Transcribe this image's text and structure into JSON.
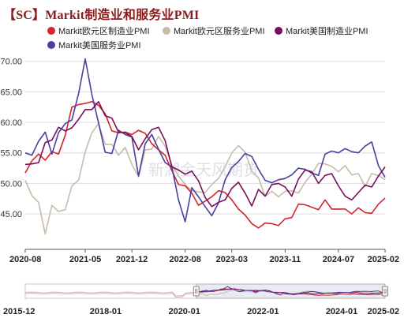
{
  "header": {
    "title": "【SC】Markit制造业和服务业PMI"
  },
  "watermark": "新湖金天风期货",
  "colors": {
    "eu_mfg": "#d4242c",
    "eu_svc": "#c8bca8",
    "us_mfg": "#7a0e5a",
    "us_svc": "#4a3fa0",
    "grid": "#dcdcdc",
    "nav_fill": "#f0e9ea"
  },
  "chart_data": {
    "type": "line",
    "title": "【SC】Markit制造业和服务业PMI",
    "ylim": [
      41,
      71
    ],
    "yticks": [
      "70.00",
      "65.00",
      "60.00",
      "55.00",
      "50.00",
      "45.00"
    ],
    "ytick_values": [
      70,
      65,
      60,
      55,
      50,
      45
    ],
    "xlim": [
      "2020-08",
      "2025-02"
    ],
    "xticks": [
      "2020-08",
      "2021-05",
      "2021-12",
      "2022-08",
      "2023-03",
      "2023-11",
      "2024-07",
      "2025-02"
    ],
    "grid": "horizontal",
    "legend_position": "top",
    "x": [
      "2020-08",
      "2020-09",
      "2020-10",
      "2020-11",
      "2020-12",
      "2021-01",
      "2021-02",
      "2021-03",
      "2021-04",
      "2021-05",
      "2021-06",
      "2021-07",
      "2021-08",
      "2021-09",
      "2021-10",
      "2021-11",
      "2021-12",
      "2022-01",
      "2022-02",
      "2022-03",
      "2022-04",
      "2022-05",
      "2022-06",
      "2022-07",
      "2022-08",
      "2022-09",
      "2022-10",
      "2022-11",
      "2022-12",
      "2023-01",
      "2023-02",
      "2023-03",
      "2023-04",
      "2023-05",
      "2023-06",
      "2023-07",
      "2023-08",
      "2023-09",
      "2023-10",
      "2023-11",
      "2023-12",
      "2024-01",
      "2024-02",
      "2024-03",
      "2024-04",
      "2024-05",
      "2024-06",
      "2024-07",
      "2024-08",
      "2024-09",
      "2024-10",
      "2024-11",
      "2024-12",
      "2025-01",
      "2025-02"
    ],
    "series": [
      {
        "name": "Markit欧元区制造业PMI",
        "color": "#d4242c",
        "values": [
          51.7,
          53.7,
          54.8,
          53.8,
          55.2,
          54.8,
          57.9,
          62.5,
          62.9,
          63.1,
          63.4,
          62.8,
          61.4,
          58.6,
          58.3,
          58.4,
          58.0,
          58.7,
          58.2,
          56.5,
          55.5,
          54.6,
          52.1,
          49.8,
          49.6,
          48.4,
          46.4,
          47.1,
          47.8,
          48.8,
          48.5,
          47.3,
          45.8,
          44.8,
          43.4,
          42.7,
          43.5,
          43.4,
          43.1,
          44.2,
          44.4,
          46.6,
          46.5,
          46.1,
          45.7,
          47.3,
          45.8,
          45.8,
          45.8,
          45.0,
          46.0,
          45.2,
          45.1,
          46.6,
          47.6
        ]
      },
      {
        "name": "Markit欧元区服务业PMI",
        "color": "#c8bca8",
        "values": [
          50.5,
          48.0,
          46.9,
          41.7,
          46.4,
          45.4,
          45.7,
          49.6,
          50.5,
          55.2,
          58.3,
          59.8,
          56.4,
          56.4,
          54.6,
          55.9,
          53.1,
          51.1,
          55.5,
          55.6,
          57.7,
          56.1,
          53.0,
          51.2,
          49.8,
          48.8,
          48.6,
          48.5,
          49.8,
          50.8,
          52.7,
          55.0,
          56.2,
          55.1,
          52.0,
          50.9,
          47.9,
          48.7,
          47.8,
          48.7,
          48.8,
          48.4,
          50.2,
          51.5,
          53.3,
          53.2,
          52.8,
          51.9,
          52.9,
          51.4,
          51.6,
          49.5,
          51.6,
          51.3,
          50.6
        ]
      },
      {
        "name": "Markit美国制造业PMI",
        "color": "#7a0e5a",
        "values": [
          53.1,
          53.2,
          53.4,
          56.7,
          57.1,
          59.2,
          58.6,
          59.1,
          60.5,
          62.1,
          62.1,
          63.4,
          61.1,
          60.7,
          58.4,
          58.3,
          57.7,
          55.5,
          57.3,
          58.8,
          59.2,
          57.0,
          52.7,
          52.2,
          51.5,
          52.0,
          50.4,
          47.7,
          46.2,
          46.9,
          47.3,
          49.2,
          50.2,
          48.4,
          46.3,
          49.0,
          47.9,
          49.8,
          50.0,
          49.4,
          47.9,
          50.7,
          52.2,
          51.9,
          50.0,
          51.3,
          51.6,
          49.6,
          47.9,
          47.3,
          48.5,
          49.7,
          49.4,
          51.2,
          52.7
        ]
      },
      {
        "name": "Markit美国服务业PMI",
        "color": "#4a3fa0",
        "values": [
          55.0,
          54.6,
          56.9,
          58.4,
          54.8,
          58.3,
          59.8,
          60.4,
          64.7,
          70.4,
          64.6,
          59.9,
          55.1,
          54.9,
          58.7,
          58.0,
          57.6,
          51.2,
          56.5,
          58.0,
          55.6,
          53.4,
          52.7,
          47.3,
          43.7,
          49.3,
          47.8,
          46.2,
          44.7,
          46.8,
          50.6,
          52.6,
          53.6,
          54.9,
          54.4,
          52.3,
          50.5,
          50.1,
          50.6,
          50.8,
          51.4,
          52.5,
          52.3,
          51.7,
          51.3,
          54.8,
          55.3,
          55.0,
          55.7,
          55.2,
          55.0,
          56.1,
          56.8,
          52.9,
          51.0
        ]
      }
    ]
  },
  "navigator": {
    "labels": [
      "2015-12",
      "2018-01",
      "2020-01",
      "2022-01",
      "2024-01",
      "2025-02"
    ],
    "label_fracs": [
      0.0,
      0.2236,
      0.4422,
      0.6608,
      0.8794,
      1.0
    ],
    "window_start_frac": 0.4753,
    "window_end_frac": 1.0
  }
}
